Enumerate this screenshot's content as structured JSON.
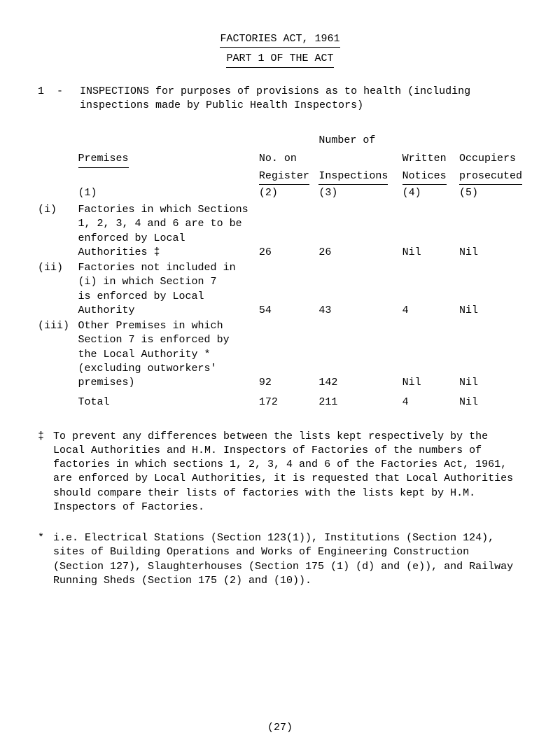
{
  "title": {
    "line1": "FACTORIES ACT, 1961",
    "line2": "PART 1 OF THE ACT"
  },
  "section1": {
    "marker": "1  -",
    "text": "INSPECTIONS for purposes of provisions as to health (including inspections made by Public Health Inspectors)"
  },
  "headers": {
    "number_of": "Number of",
    "premises": "Premises",
    "no_on": "No. on",
    "register": "Register",
    "inspections": "Inspections",
    "written": "Written",
    "notices": "Notices",
    "occupiers": "Occupiers",
    "prosecuted": "prosecuted",
    "c1": "(1)",
    "c2": "(2)",
    "c3": "(3)",
    "c4": "(4)",
    "c5": "(5)"
  },
  "rows": [
    {
      "idx": "(i)",
      "prem_lines": [
        "Factories in which Sections",
        "1, 2, 3, 4 and 6 are to be",
        "enforced by Local",
        "Authorities    ‡"
      ],
      "reg": "26",
      "insp": "26",
      "not": "Nil",
      "occ": "Nil"
    },
    {
      "idx": "(ii)",
      "prem_lines": [
        "Factories not included in",
        "(i) in which Section 7",
        "is enforced by Local",
        "Authority"
      ],
      "reg": "54",
      "insp": "43",
      "not": "4",
      "occ": "Nil"
    },
    {
      "idx": "(iii)",
      "prem_lines": [
        "Other Premises in which",
        "Section 7 is enforced by",
        "the Local Authority  *",
        "(excluding outworkers'",
        "premises)"
      ],
      "reg": "92",
      "insp": "142",
      "not": "Nil",
      "occ": "Nil"
    }
  ],
  "total": {
    "label": "Total",
    "reg": "172",
    "insp": "211",
    "not": "4",
    "occ": "Nil"
  },
  "footnotes": {
    "f1": {
      "mark": "‡",
      "text": "To prevent any differences between the lists kept respectively by the Local Authorities and H.M. Inspectors of Factories of the numbers of factories in which sections 1, 2, 3, 4 and 6 of the Factories Act, 1961, are enforced by Local Authorities, it is requested that Local Authorities should compare their lists of factories with the lists kept by H.M. Inspectors of Factories."
    },
    "f2": {
      "mark": "*",
      "text": "i.e. Electrical Stations (Section 123(1)), Institutions (Section 124), sites of Building Operations and Works of Engineering Construction (Section 127), Slaughterhouses (Section 175 (1) (d) and (e)), and Railway Running Sheds (Section 175 (2) and (10))."
    }
  },
  "pagenum": "(27)"
}
